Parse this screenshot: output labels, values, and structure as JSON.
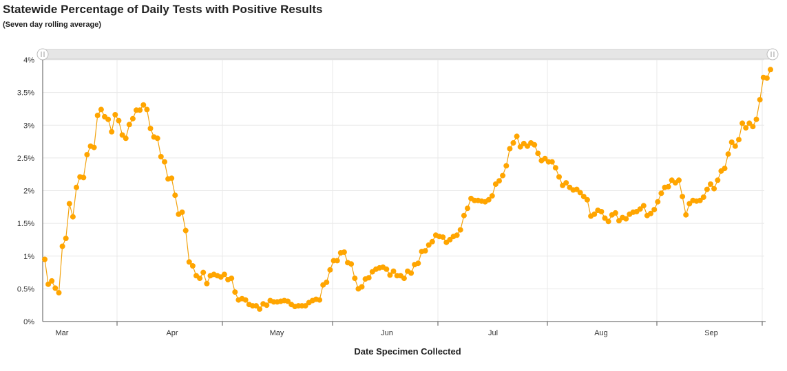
{
  "chart_data": {
    "type": "line",
    "title": "Statewide Percentage of Daily Tests with Positive Results",
    "subtitle": "(Seven day rolling average)",
    "xlabel": "Date Specimen Collected",
    "ylabel": "",
    "ylim": [
      0,
      4
    ],
    "ytick_labels": [
      "0%",
      "0.5%",
      "1%",
      "1.5%",
      "2%",
      "2.5%",
      "3%",
      "3.5%",
      "4%"
    ],
    "xtick_labels": [
      "Mar",
      "Apr",
      "May",
      "Jun",
      "Jul",
      "Aug",
      "Sep"
    ],
    "grid": true,
    "series_color": "#FFA500",
    "line_color": "#F2A20C",
    "series": [
      {
        "values": [
          0.95,
          0.57,
          0.62,
          0.51,
          0.44,
          1.15,
          1.27,
          1.8,
          1.6,
          2.05,
          2.21,
          2.2,
          2.55,
          2.68,
          2.66,
          3.15,
          3.24,
          3.13,
          3.09,
          2.9,
          3.16,
          3.07,
          2.85,
          2.8,
          3.01,
          3.1,
          3.23,
          3.23,
          3.31,
          3.24,
          2.95,
          2.82,
          2.8,
          2.52,
          2.44,
          2.18,
          2.19,
          1.93,
          1.64,
          1.67,
          1.39,
          0.91,
          0.85,
          0.7,
          0.66,
          0.75,
          0.58,
          0.7,
          0.72,
          0.7,
          0.68,
          0.72,
          0.64,
          0.66,
          0.45,
          0.33,
          0.35,
          0.33,
          0.26,
          0.24,
          0.24,
          0.19,
          0.27,
          0.25,
          0.32,
          0.3,
          0.3,
          0.31,
          0.32,
          0.31,
          0.26,
          0.23,
          0.24,
          0.24,
          0.24,
          0.29,
          0.32,
          0.34,
          0.33,
          0.56,
          0.6,
          0.79,
          0.93,
          0.93,
          1.05,
          1.06,
          0.9,
          0.88,
          0.66,
          0.5,
          0.53,
          0.65,
          0.67,
          0.76,
          0.8,
          0.82,
          0.83,
          0.8,
          0.71,
          0.77,
          0.7,
          0.7,
          0.66,
          0.77,
          0.74,
          0.87,
          0.89,
          1.07,
          1.08,
          1.17,
          1.22,
          1.32,
          1.3,
          1.29,
          1.21,
          1.25,
          1.3,
          1.32,
          1.4,
          1.62,
          1.73,
          1.88,
          1.85,
          1.85,
          1.84,
          1.83,
          1.86,
          1.92,
          2.1,
          2.15,
          2.23,
          2.38,
          2.64,
          2.73,
          2.83,
          2.67,
          2.72,
          2.68,
          2.73,
          2.7,
          2.57,
          2.46,
          2.49,
          2.44,
          2.44,
          2.35,
          2.21,
          2.08,
          2.12,
          2.05,
          2.01,
          2.02,
          1.97,
          1.91,
          1.86,
          1.61,
          1.64,
          1.7,
          1.68,
          1.58,
          1.53,
          1.63,
          1.66,
          1.54,
          1.59,
          1.57,
          1.64,
          1.67,
          1.68,
          1.72,
          1.77,
          1.62,
          1.65,
          1.71,
          1.83,
          1.96,
          2.05,
          2.06,
          2.16,
          2.12,
          2.16,
          1.91,
          1.63,
          1.8,
          1.85,
          1.84,
          1.85,
          1.9,
          2.02,
          2.1,
          2.03,
          2.16,
          2.3,
          2.34,
          2.56,
          2.74,
          2.68,
          2.78,
          3.03,
          2.96,
          3.03,
          2.98,
          3.09,
          3.39,
          3.73,
          3.72,
          3.85
        ]
      }
    ]
  }
}
